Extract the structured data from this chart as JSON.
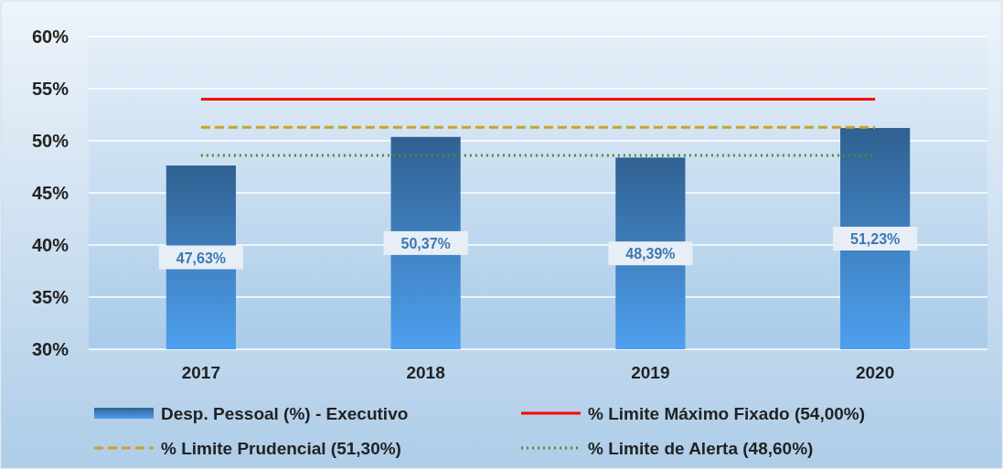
{
  "chart_data": {
    "type": "bar",
    "categories": [
      "2017",
      "2018",
      "2019",
      "2020"
    ],
    "series": [
      {
        "name": "Desp. Pessoal (%) - Executivo",
        "color": "#3b78b4",
        "values": [
          47.63,
          50.37,
          48.39,
          51.23
        ],
        "value_labels": [
          "47,63%",
          "50,37%",
          "48,39%",
          "51,23%"
        ]
      },
      {
        "name": "% Limite Máximo Fixado (54,00%)",
        "type": "line",
        "color": "#ff0000",
        "line_style": "solid",
        "values": [
          54,
          54,
          54,
          54
        ]
      },
      {
        "name": "% Limite Prudencial (51,30%)",
        "type": "line",
        "color": "#c9a227",
        "line_style": "dashed",
        "values": [
          51.3,
          51.3,
          51.3,
          51.3
        ]
      },
      {
        "name": "% Limite de Alerta (48,60%)",
        "type": "line",
        "color": "#4e8a3a",
        "line_style": "dotted",
        "values": [
          48.6,
          48.6,
          48.6,
          48.6
        ]
      }
    ],
    "ylim": [
      30,
      60
    ],
    "yticks": [
      {
        "value": 30,
        "label": "30%"
      },
      {
        "value": 35,
        "label": "35%"
      },
      {
        "value": 40,
        "label": "40%"
      },
      {
        "value": 45,
        "label": "45%"
      },
      {
        "value": 50,
        "label": "50%"
      },
      {
        "value": 55,
        "label": "55%"
      },
      {
        "value": 60,
        "label": "60%"
      }
    ],
    "grid": "y",
    "legend": "bottom"
  }
}
